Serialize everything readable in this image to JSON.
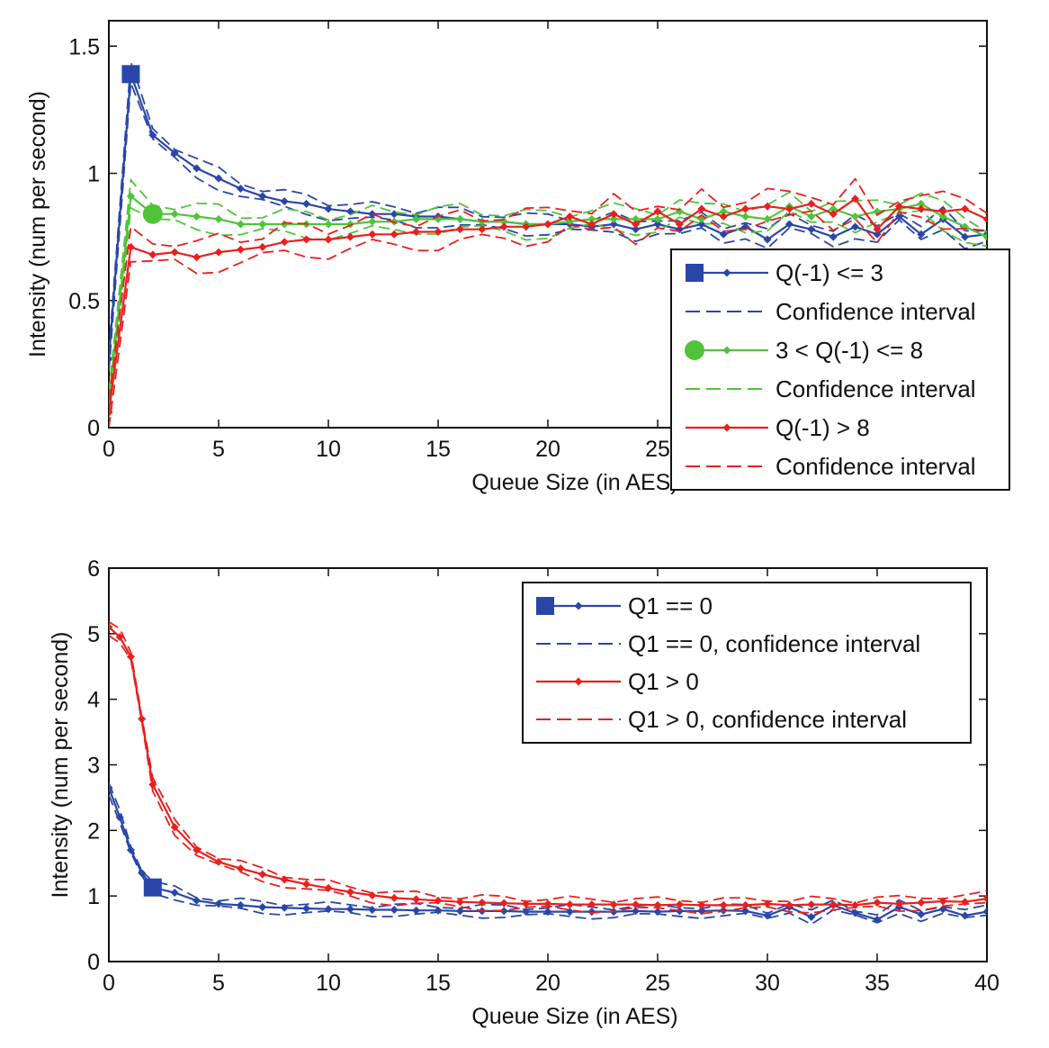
{
  "colors": {
    "series_1": "#2a46a8",
    "series_2": "#4fc43a",
    "series_3": "#e8201e",
    "axis": "#111111",
    "background": "#ffffff"
  },
  "chart_data": [
    {
      "type": "line",
      "xlabel": "Queue Size (in AES)",
      "ylabel": "Intensity (num per second)",
      "xlim": [
        0,
        40
      ],
      "ylim": [
        0,
        1.6
      ],
      "x_ticks": [
        "0",
        "5",
        "10",
        "15",
        "20",
        "25"
      ],
      "y_ticks": [
        "0",
        "0.5",
        "1",
        "1.5"
      ],
      "grid": false,
      "legend_position": "bottom-right",
      "legend": [
        "Q(-1) <= 3",
        "Confidence interval",
        "3 < Q(-1) <= 8",
        "Confidence interval",
        "Q(-1) > 8",
        "Confidence interval"
      ],
      "series": [
        {
          "color": "#2a46a8",
          "marker_x": 1,
          "x": [
            0,
            1,
            2,
            3,
            4,
            5,
            6,
            7,
            8,
            9,
            10,
            11,
            12,
            13,
            14,
            15,
            16,
            17,
            18,
            19,
            20,
            21,
            22,
            23,
            24,
            25,
            26,
            27,
            28,
            29,
            30,
            31,
            32,
            33,
            34,
            35,
            36,
            37,
            38,
            39,
            40
          ],
          "values": [
            0.27,
            1.39,
            1.15,
            1.08,
            1.02,
            0.98,
            0.94,
            0.91,
            0.89,
            0.88,
            0.86,
            0.85,
            0.84,
            0.84,
            0.83,
            0.83,
            0.82,
            0.81,
            0.81,
            0.8,
            0.8,
            0.8,
            0.79,
            0.8,
            0.78,
            0.8,
            0.78,
            0.8,
            0.76,
            0.79,
            0.74,
            0.8,
            0.78,
            0.75,
            0.79,
            0.76,
            0.83,
            0.76,
            0.82,
            0.75,
            0.76
          ],
          "ci_width": 0.03
        },
        {
          "color": "#4fc43a",
          "marker_x": 2,
          "x": [
            0,
            1,
            2,
            3,
            4,
            5,
            6,
            7,
            8,
            9,
            10,
            11,
            12,
            13,
            14,
            15,
            16,
            17,
            18,
            19,
            20,
            21,
            22,
            23,
            24,
            25,
            26,
            27,
            28,
            29,
            30,
            31,
            32,
            33,
            34,
            35,
            36,
            37,
            38,
            39,
            40
          ],
          "values": [
            0.1,
            0.91,
            0.84,
            0.84,
            0.83,
            0.82,
            0.8,
            0.8,
            0.8,
            0.8,
            0.8,
            0.8,
            0.81,
            0.81,
            0.82,
            0.82,
            0.82,
            0.81,
            0.81,
            0.8,
            0.8,
            0.81,
            0.82,
            0.82,
            0.82,
            0.82,
            0.85,
            0.82,
            0.85,
            0.83,
            0.82,
            0.87,
            0.83,
            0.86,
            0.83,
            0.85,
            0.86,
            0.88,
            0.83,
            0.79,
            0.75
          ],
          "ci_width": 0.04
        },
        {
          "color": "#e8201e",
          "marker_x": null,
          "x": [
            0,
            1,
            2,
            3,
            4,
            5,
            6,
            7,
            8,
            9,
            10,
            11,
            12,
            13,
            14,
            15,
            16,
            17,
            18,
            19,
            20,
            21,
            22,
            23,
            24,
            25,
            26,
            27,
            28,
            29,
            30,
            31,
            32,
            33,
            34,
            35,
            36,
            37,
            38,
            39,
            40
          ],
          "values": [
            0.06,
            0.71,
            0.68,
            0.69,
            0.67,
            0.69,
            0.7,
            0.71,
            0.73,
            0.74,
            0.74,
            0.75,
            0.76,
            0.76,
            0.77,
            0.77,
            0.78,
            0.78,
            0.79,
            0.79,
            0.8,
            0.83,
            0.8,
            0.84,
            0.8,
            0.85,
            0.8,
            0.86,
            0.83,
            0.86,
            0.87,
            0.86,
            0.88,
            0.84,
            0.9,
            0.78,
            0.87,
            0.86,
            0.85,
            0.86,
            0.82
          ],
          "ci_width": 0.05
        }
      ]
    },
    {
      "type": "line",
      "xlabel": "Queue Size (in AES)",
      "ylabel": "Intensity (num per second)",
      "xlim": [
        0,
        40
      ],
      "ylim": [
        0,
        6
      ],
      "x_ticks": [
        "0",
        "5",
        "10",
        "15",
        "20",
        "25",
        "30",
        "35",
        "40"
      ],
      "y_ticks": [
        "0",
        "1",
        "2",
        "3",
        "4",
        "5",
        "6"
      ],
      "grid": false,
      "legend_position": "top-right",
      "legend": [
        "Q1 == 0",
        "Q1 == 0, confidence interval",
        "Q1 > 0",
        "Q1 > 0, confidence interval"
      ],
      "series": [
        {
          "color": "#2a46a8",
          "marker_x": 2,
          "x": [
            0,
            0.5,
            1,
            1.5,
            2,
            3,
            4,
            5,
            6,
            7,
            8,
            9,
            10,
            11,
            12,
            13,
            14,
            15,
            16,
            17,
            18,
            19,
            20,
            21,
            22,
            23,
            24,
            25,
            26,
            27,
            28,
            29,
            30,
            31,
            32,
            33,
            34,
            35,
            36,
            37,
            38,
            39,
            40
          ],
          "values": [
            2.65,
            2.2,
            1.7,
            1.35,
            1.13,
            1.05,
            0.93,
            0.88,
            0.86,
            0.83,
            0.82,
            0.81,
            0.8,
            0.8,
            0.79,
            0.79,
            0.78,
            0.78,
            0.77,
            0.77,
            0.77,
            0.76,
            0.76,
            0.76,
            0.76,
            0.76,
            0.77,
            0.76,
            0.77,
            0.77,
            0.78,
            0.77,
            0.7,
            0.83,
            0.68,
            0.86,
            0.74,
            0.64,
            0.83,
            0.72,
            0.8,
            0.7,
            0.76
          ],
          "ci_width": 0.07
        },
        {
          "color": "#e8201e",
          "marker_x": null,
          "x": [
            0,
            0.5,
            1,
            1.5,
            2,
            3,
            4,
            5,
            6,
            7,
            8,
            9,
            10,
            11,
            12,
            13,
            14,
            15,
            16,
            17,
            18,
            19,
            20,
            21,
            22,
            23,
            24,
            25,
            26,
            27,
            28,
            29,
            30,
            31,
            32,
            33,
            34,
            35,
            36,
            37,
            38,
            39,
            40
          ],
          "values": [
            5.1,
            4.95,
            4.65,
            3.7,
            2.7,
            2.05,
            1.7,
            1.52,
            1.42,
            1.33,
            1.25,
            1.18,
            1.12,
            1.06,
            1.01,
            0.97,
            0.95,
            0.93,
            0.91,
            0.9,
            0.89,
            0.88,
            0.88,
            0.87,
            0.87,
            0.87,
            0.87,
            0.86,
            0.87,
            0.86,
            0.86,
            0.86,
            0.88,
            0.86,
            0.87,
            0.87,
            0.86,
            0.9,
            0.88,
            0.9,
            0.92,
            0.91,
            0.96
          ],
          "ci_width": 0.08
        }
      ]
    }
  ]
}
